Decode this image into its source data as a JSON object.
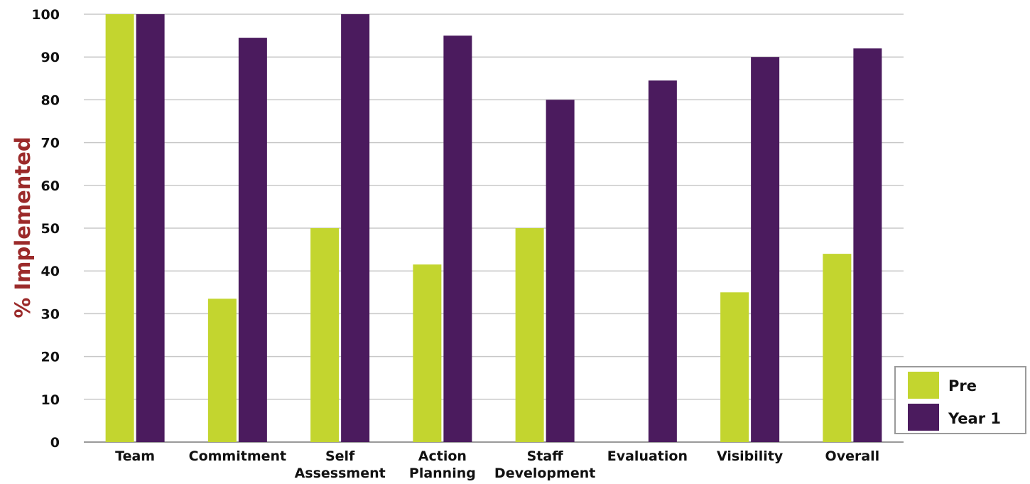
{
  "chart_data": {
    "type": "bar",
    "title": "",
    "xlabel": "",
    "ylabel": "% Implemented",
    "ylim": [
      0,
      100
    ],
    "yticks": [
      0,
      10,
      20,
      30,
      40,
      50,
      60,
      70,
      80,
      90,
      100
    ],
    "grid": true,
    "legend_position": "bottom-right",
    "categories": [
      [
        "Team"
      ],
      [
        "Commitment"
      ],
      [
        "Self",
        "Assessment"
      ],
      [
        "Action",
        "Planning"
      ],
      [
        "Staff",
        "Development"
      ],
      [
        "Evaluation"
      ],
      [
        "Visibility"
      ],
      [
        "Overall"
      ]
    ],
    "series": [
      {
        "name": "Pre",
        "color": "#c3d52f",
        "values": [
          100,
          33.5,
          50,
          41.5,
          50,
          0,
          35,
          44
        ]
      },
      {
        "name": "Year 1",
        "color": "#4b1b5e",
        "values": [
          100,
          94.5,
          100,
          95,
          80,
          84.5,
          90,
          92
        ]
      }
    ],
    "ylabel_color": "#9b2a2a",
    "grid_color": "#c8c8c8"
  }
}
